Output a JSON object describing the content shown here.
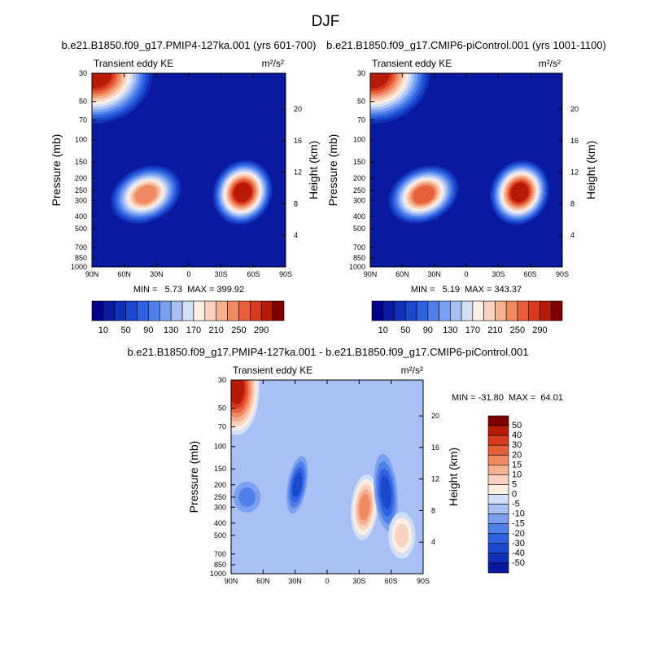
{
  "season": "DJF",
  "panels": [
    {
      "id": "test",
      "title": "b.e21.B1850.f09_g17.PMIP4-127ka.001 (yrs 601-700)",
      "field_label": "Transient eddy KE",
      "units": "m²/s²",
      "min_max": "MIN =   5.73  MAX = 399.92",
      "ylabel_left": "Pressure (mb)",
      "ylabel_right": "Height (km)"
    },
    {
      "id": "control",
      "title": "b.e21.B1850.f09_g17.CMIP6-piControl.001 (yrs 1001-1100)",
      "field_label": "Transient eddy KE",
      "units": "m²/s²",
      "min_max": "MIN =   5.19  MAX = 343.37",
      "ylabel_left": "Pressure (mb)",
      "ylabel_right": "Height (km)"
    },
    {
      "id": "diff",
      "title": "b.e21.B1850.f09_g17.PMIP4-127ka.001 - b.e21.B1850.f09_g17.CMIP6-piControl.001",
      "field_label": "Transient eddy KE",
      "units": "m²/s²",
      "min_max": "MIN = -31.80  MAX =  64.01",
      "ylabel_left": "Pressure (mb)",
      "ylabel_right": "Height (km)"
    }
  ],
  "chart_data": [
    {
      "type": "heatmap",
      "title": "b.e21.B1850.f09_g17.PMIP4-127ka.001 (yrs 601-700)",
      "field": "Transient eddy KE",
      "units": "m²/s²",
      "x_ticks": [
        "90N",
        "60N",
        "30N",
        "0",
        "30S",
        "60S",
        "90S"
      ],
      "y_ticks_pressure": [
        "30",
        "50",
        "70",
        "100",
        "150",
        "200",
        "250",
        "300",
        "400",
        "500",
        "700",
        "850",
        "1000"
      ],
      "y_ticks_height": [
        "4",
        "8",
        "12",
        "16",
        "20"
      ],
      "ylim_mb": [
        1000,
        30
      ],
      "min": 5.73,
      "max": 399.92,
      "levels": [
        10,
        30,
        50,
        70,
        90,
        110,
        130,
        150,
        170,
        190,
        210,
        230,
        250,
        270,
        290
      ],
      "colorbar_labels": [
        "10",
        "50",
        "90",
        "130",
        "170",
        "210",
        "250",
        "290"
      ],
      "colors": [
        "#00008c",
        "#0a1aa0",
        "#1030b8",
        "#1c48d0",
        "#2f62e0",
        "#4f80ea",
        "#7ca0f0",
        "#a8c0f4",
        "#d2e0f7",
        "#fdeee2",
        "#f9d3bf",
        "#f5b090",
        "#f08a62",
        "#e8603a",
        "#d83a1e",
        "#b81a08",
        "#800000"
      ],
      "features": [
        {
          "name": "upper-level NH maximum",
          "lat": 88,
          "p": 30,
          "value": 300
        },
        {
          "name": "NH jet maximum",
          "lat": 40,
          "p": 270,
          "value": 235
        },
        {
          "name": "SH jet maximum",
          "lat": -50,
          "p": 260,
          "value": 290
        }
      ]
    },
    {
      "type": "heatmap",
      "title": "b.e21.B1850.f09_g17.CMIP6-piControl.001 (yrs 1001-1100)",
      "field": "Transient eddy KE",
      "units": "m²/s²",
      "x_ticks": [
        "90N",
        "60N",
        "30N",
        "0",
        "30S",
        "60S",
        "90S"
      ],
      "y_ticks_pressure": [
        "30",
        "50",
        "70",
        "100",
        "150",
        "200",
        "250",
        "300",
        "400",
        "500",
        "700",
        "850",
        "1000"
      ],
      "y_ticks_height": [
        "4",
        "8",
        "12",
        "16",
        "20"
      ],
      "ylim_mb": [
        1000,
        30
      ],
      "min": 5.19,
      "max": 343.37,
      "levels": [
        10,
        30,
        50,
        70,
        90,
        110,
        130,
        150,
        170,
        190,
        210,
        230,
        250,
        270,
        290
      ],
      "colorbar_labels": [
        "10",
        "50",
        "90",
        "130",
        "170",
        "210",
        "250",
        "290"
      ],
      "colors": [
        "#00008c",
        "#0a1aa0",
        "#1030b8",
        "#1c48d0",
        "#2f62e0",
        "#4f80ea",
        "#7ca0f0",
        "#a8c0f4",
        "#d2e0f7",
        "#fdeee2",
        "#f9d3bf",
        "#f5b090",
        "#f08a62",
        "#e8603a",
        "#d83a1e",
        "#b81a08",
        "#800000"
      ],
      "features": [
        {
          "name": "upper-level NH maximum",
          "lat": 88,
          "p": 30,
          "value": 290
        },
        {
          "name": "NH jet maximum",
          "lat": 40,
          "p": 270,
          "value": 255
        },
        {
          "name": "SH jet maximum",
          "lat": -50,
          "p": 260,
          "value": 290
        }
      ]
    },
    {
      "type": "heatmap",
      "title": "b.e21.B1850.f09_g17.PMIP4-127ka.001 - b.e21.B1850.f09_g17.CMIP6-piControl.001",
      "field": "Transient eddy KE",
      "units": "m²/s²",
      "x_ticks": [
        "90N",
        "60N",
        "30N",
        "0",
        "30S",
        "60S",
        "90S"
      ],
      "y_ticks_pressure": [
        "30",
        "50",
        "70",
        "100",
        "150",
        "200",
        "250",
        "300",
        "400",
        "500",
        "700",
        "850",
        "1000"
      ],
      "y_ticks_height": [
        "4",
        "8",
        "12",
        "16",
        "20"
      ],
      "ylim_mb": [
        1000,
        30
      ],
      "min": -31.8,
      "max": 64.01,
      "levels": [
        -50,
        -40,
        -30,
        -20,
        -15,
        -10,
        -5,
        0,
        5,
        10,
        15,
        20,
        30,
        40,
        50
      ],
      "colorbar_labels": [
        "50",
        "40",
        "30",
        "20",
        "15",
        "10",
        "5",
        "0",
        "-5",
        "-10",
        "-15",
        "-20",
        "-30",
        "-40",
        "-50"
      ],
      "colors": [
        "#00008c",
        "#0a1aa0",
        "#1030b8",
        "#1c48d0",
        "#2f62e0",
        "#4f80ea",
        "#7ca0f0",
        "#a8c0f4",
        "#d2e0f7",
        "#fdeee2",
        "#f9d3bf",
        "#f5b090",
        "#f08a62",
        "#e8603a",
        "#d83a1e",
        "#b81a08",
        "#800000"
      ],
      "features": [
        {
          "name": "NH polar upper positive",
          "lat": 85,
          "p": 35,
          "value": 50
        },
        {
          "name": "30N negative",
          "lat": 28,
          "p": 200,
          "value": -20
        },
        {
          "name": "SH positive",
          "lat": -35,
          "p": 300,
          "value": 25
        },
        {
          "name": "SH negative",
          "lat": -55,
          "p": 230,
          "value": -25
        },
        {
          "name": "NH negative",
          "lat": 75,
          "p": 250,
          "value": -12
        },
        {
          "name": "SH lower positive",
          "lat": -70,
          "p": 500,
          "value": 12
        }
      ]
    }
  ]
}
